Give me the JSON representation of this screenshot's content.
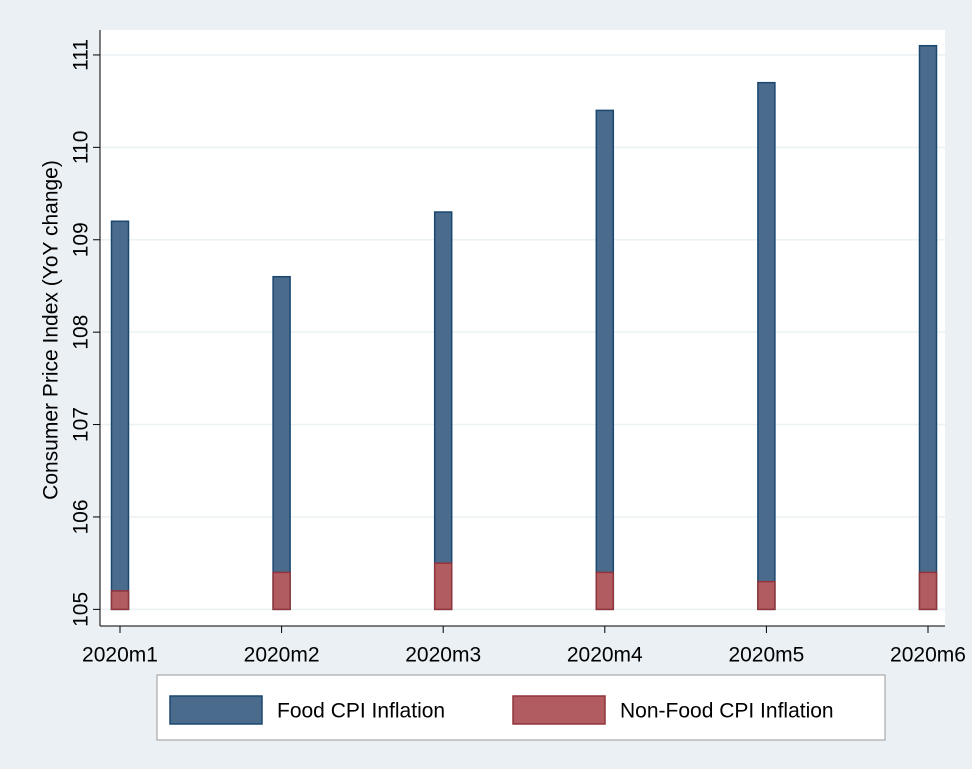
{
  "chart_data": {
    "type": "bar",
    "ylabel": "Consumer Price Index (YoY change)",
    "categories": [
      "2020m1",
      "2020m2",
      "2020m3",
      "2020m4",
      "2020m5",
      "2020m6"
    ],
    "series": [
      {
        "name": "Food CPI Inflation",
        "color": "#4a6b8c",
        "values": [
          109.2,
          108.6,
          109.3,
          110.4,
          110.7,
          111.1
        ]
      },
      {
        "name": "Non-Food CPI Inflation",
        "color": "#b05c60",
        "values": [
          105.2,
          105.4,
          105.5,
          105.4,
          105.3,
          105.4
        ]
      }
    ],
    "ylim": [
      104.82,
      111.27
    ],
    "yticks": [
      105,
      106,
      107,
      108,
      109,
      110,
      111
    ],
    "grid": true,
    "legend": "bottom"
  }
}
